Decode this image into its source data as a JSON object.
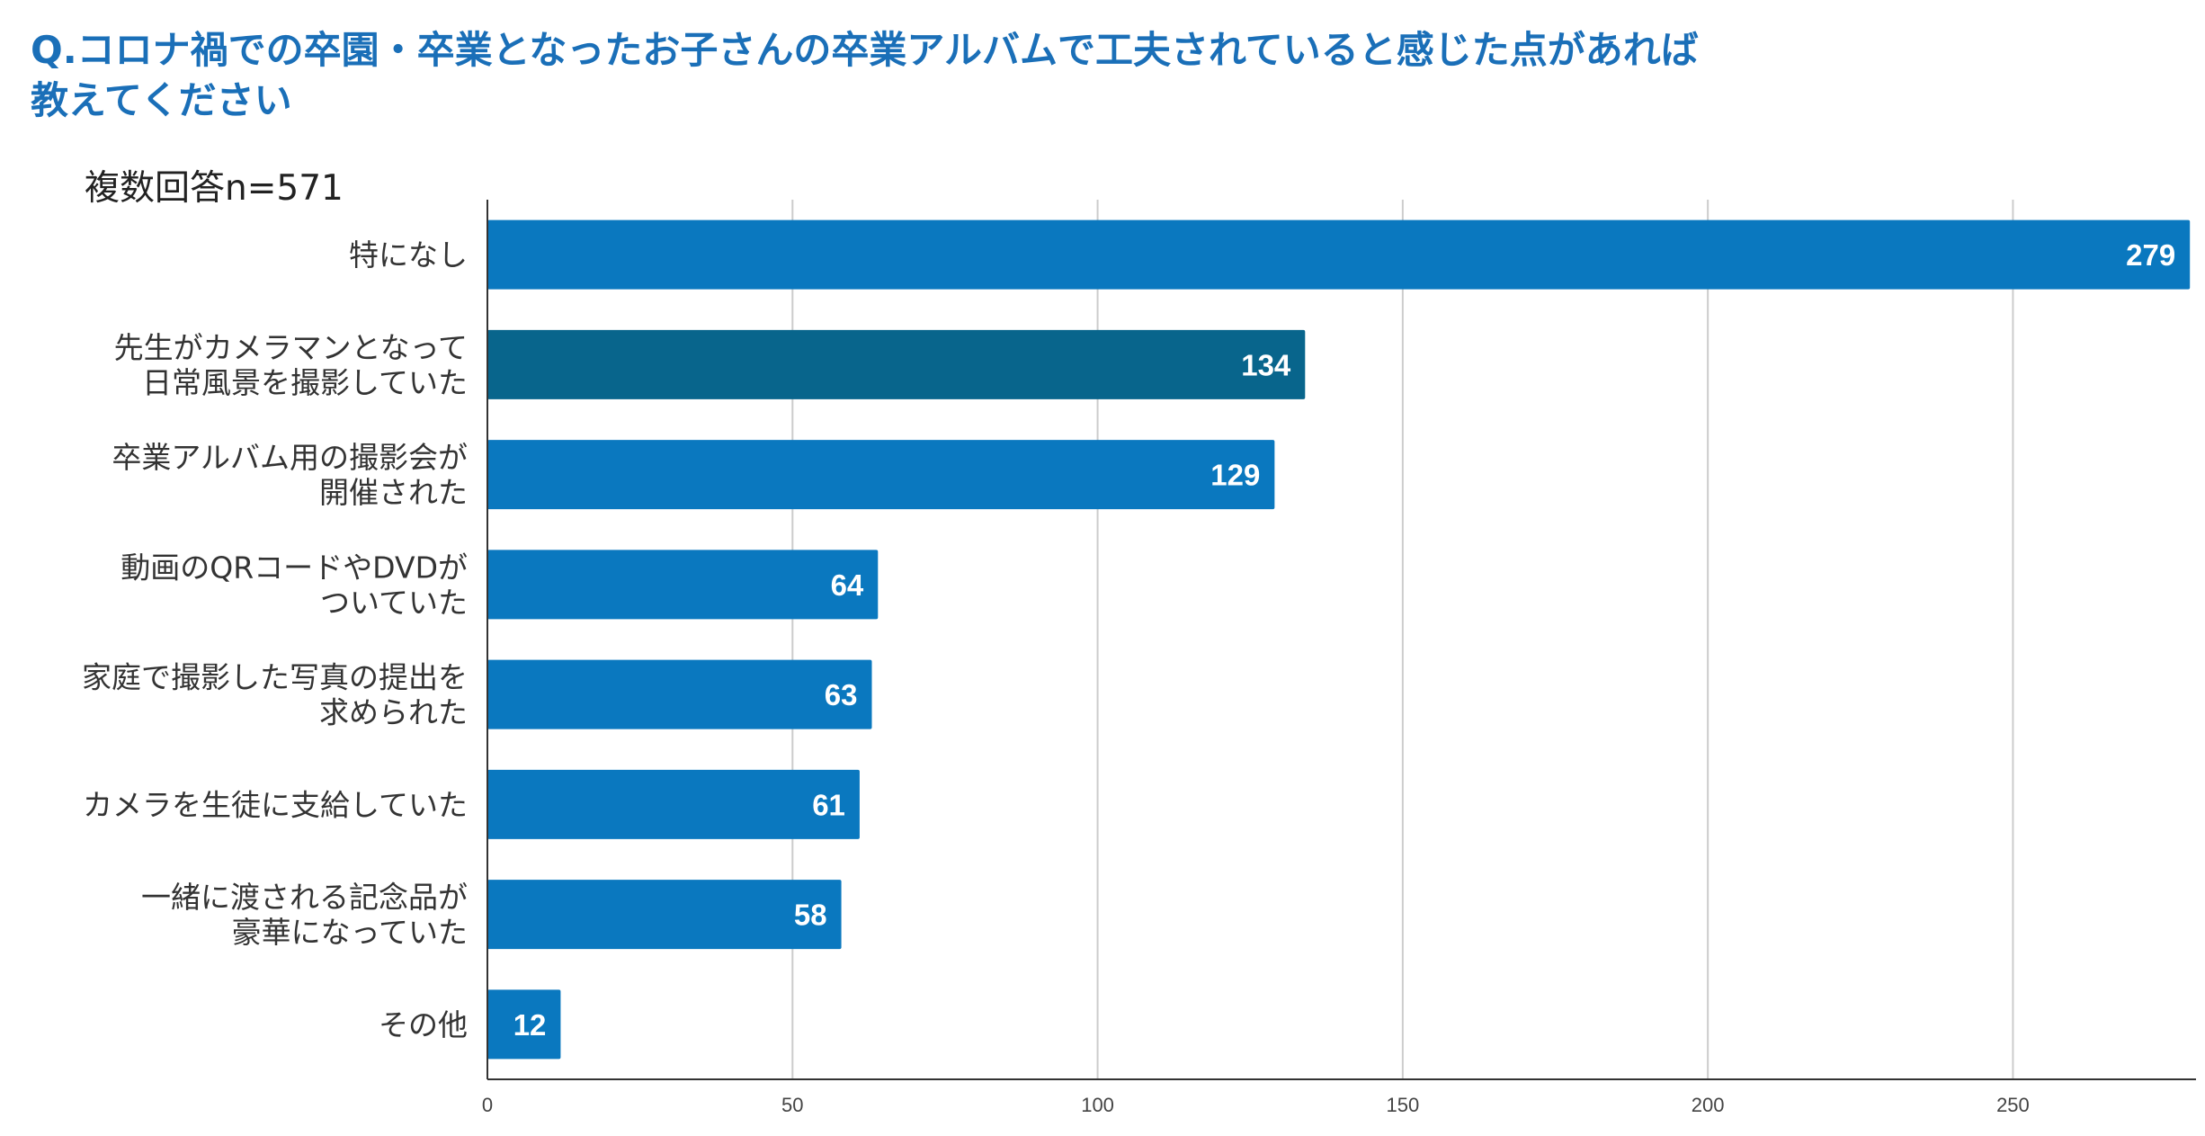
{
  "header": {
    "title_line1": "Q.コロナ禍での卒園・卒業となったお子さんの卒業アルバムで工夫されていると感じた点があれば",
    "title_line2": "教えてください",
    "note": "複数回答n=571"
  },
  "chart_data": {
    "type": "bar",
    "orientation": "horizontal",
    "categories": [
      [
        "特になし"
      ],
      [
        "先生がカメラマンとなって",
        "日常風景を撮影していた"
      ],
      [
        "卒業アルバム用の撮影会が",
        "開催された"
      ],
      [
        "動画のQRコードやDVDが",
        "ついていた"
      ],
      [
        "家庭で撮影した写真の提出を",
        "求められた"
      ],
      [
        "カメラを生徒に支給していた"
      ],
      [
        "一緒に渡される記念品が",
        "豪華になっていた"
      ],
      [
        "その他"
      ]
    ],
    "values": [
      279,
      134,
      129,
      64,
      63,
      61,
      58,
      12
    ],
    "bar_colors": [
      "#0a78bf",
      "#08658c",
      "#0a78bf",
      "#0a78bf",
      "#0a78bf",
      "#0a78bf",
      "#0a78bf",
      "#0a78bf"
    ],
    "xlim": [
      0,
      280
    ],
    "xticks": [
      0,
      50,
      100,
      150,
      200,
      250
    ],
    "grid": true,
    "gridline_color": "#cccccc",
    "axis_color": "#333333"
  }
}
